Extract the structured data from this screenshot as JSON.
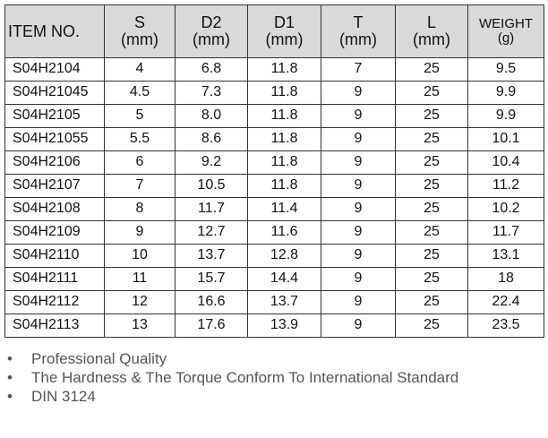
{
  "table": {
    "header": [
      [
        "ITEM NO."
      ],
      [
        "S",
        "(mm)"
      ],
      [
        "D2",
        "(mm)"
      ],
      [
        "D1",
        "(mm)"
      ],
      [
        "T",
        "(mm)"
      ],
      [
        "L",
        "(mm)"
      ],
      [
        "WEIGHT",
        "(g)"
      ]
    ],
    "rows": [
      [
        "S04H2104",
        "4",
        "6.8",
        "11.8",
        "7",
        "25",
        "9.5"
      ],
      [
        "S04H21045",
        "4.5",
        "7.3",
        "11.8",
        "9",
        "25",
        "9.9"
      ],
      [
        "S04H2105",
        "5",
        "8.0",
        "11.8",
        "9",
        "25",
        "9.9"
      ],
      [
        "S04H21055",
        "5.5",
        "8.6",
        "11.8",
        "9",
        "25",
        "10.1"
      ],
      [
        "S04H2106",
        "6",
        "9.2",
        "11.8",
        "9",
        "25",
        "10.4"
      ],
      [
        "S04H2107",
        "7",
        "10.5",
        "11.8",
        "9",
        "25",
        "11.2"
      ],
      [
        "S04H2108",
        "8",
        "11.7",
        "11.4",
        "9",
        "25",
        "10.2"
      ],
      [
        "S04H2109",
        "9",
        "12.7",
        "11.6",
        "9",
        "25",
        "11.7"
      ],
      [
        "S04H2110",
        "10",
        "13.7",
        "12.8",
        "9",
        "25",
        "13.1"
      ],
      [
        "S04H2111",
        "11",
        "15.7",
        "14.4",
        "9",
        "25",
        "18"
      ],
      [
        "S04H2112",
        "12",
        "16.6",
        "13.7",
        "9",
        "25",
        "22.4"
      ],
      [
        "S04H2113",
        "13",
        "17.6",
        "13.9",
        "9",
        "25",
        "23.5"
      ]
    ]
  },
  "notes": [
    "Professional Quality",
    "The Hardness & The Torque Conform To International Standard",
    "DIN 3124"
  ]
}
